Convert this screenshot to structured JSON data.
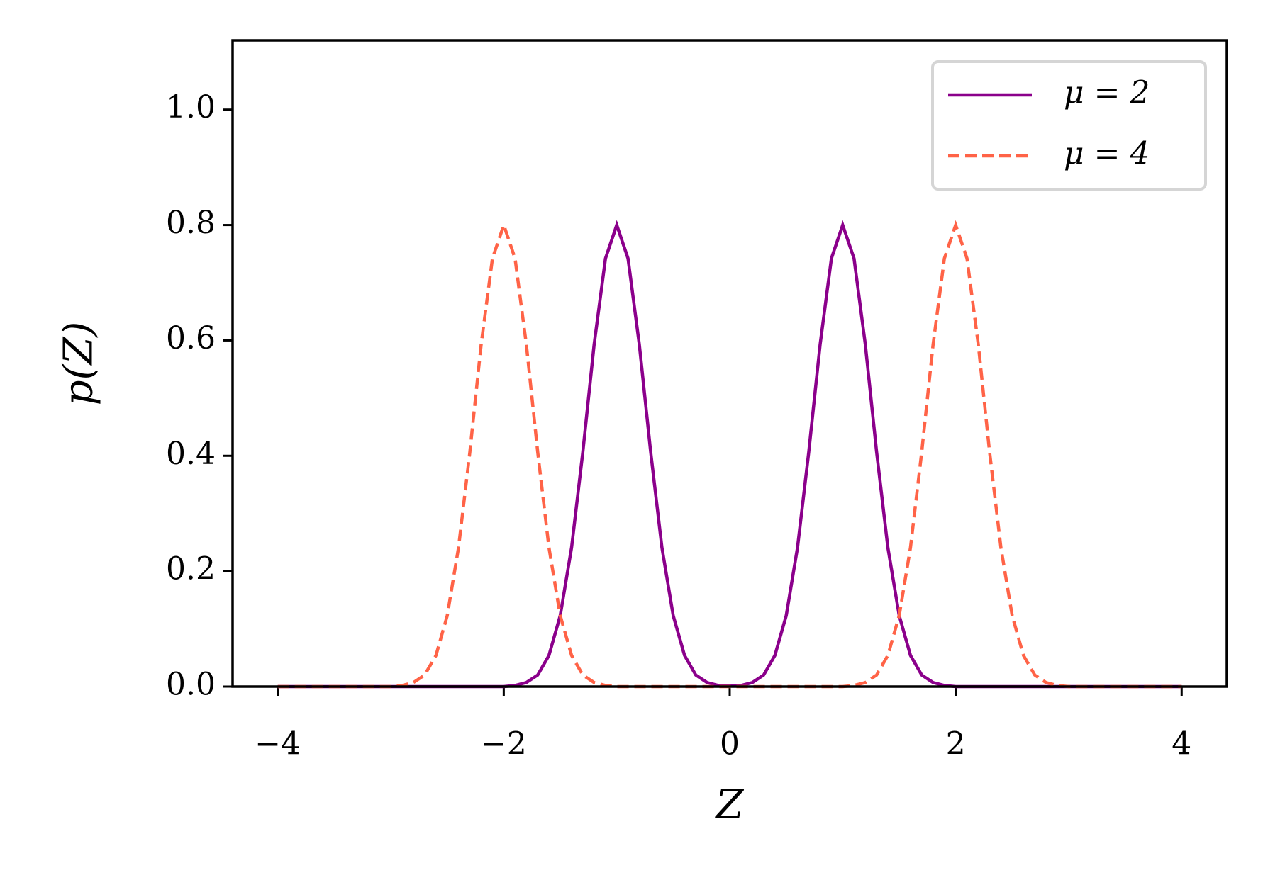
{
  "chart_data": {
    "type": "line",
    "xlabel": "Z",
    "ylabel": "p(Z)",
    "x": [
      -4.0,
      -3.9,
      -3.8,
      -3.7,
      -3.6,
      -3.5,
      -3.4,
      -3.3,
      -3.2,
      -3.1,
      -3.0,
      -2.9,
      -2.8,
      -2.7,
      -2.6,
      -2.5,
      -2.4,
      -2.3,
      -2.2,
      -2.1,
      -2.0,
      -1.9,
      -1.8,
      -1.7,
      -1.6,
      -1.5,
      -1.4,
      -1.3,
      -1.2,
      -1.1,
      -1.0,
      -0.9,
      -0.8,
      -0.7,
      -0.6,
      -0.5,
      -0.4,
      -0.3,
      -0.2,
      -0.1,
      0.0,
      0.1,
      0.2,
      0.3,
      0.4,
      0.5,
      0.6,
      0.7,
      0.8,
      0.9,
      1.0,
      1.1,
      1.2,
      1.3,
      1.4,
      1.5,
      1.6,
      1.7,
      1.8,
      1.9,
      2.0,
      2.1,
      2.2,
      2.3,
      2.4,
      2.5,
      2.6,
      2.7,
      2.8,
      2.9,
      3.0,
      3.1,
      3.2,
      3.3,
      3.4,
      3.5,
      3.6,
      3.7,
      3.8,
      3.9,
      4.0
    ],
    "series": [
      {
        "name": "μ = 2",
        "color": "#8b008b",
        "dash": false,
        "values": [
          0,
          0,
          0,
          0,
          0,
          0,
          0,
          0,
          0,
          0,
          0,
          0,
          0,
          0,
          0,
          0,
          0,
          0,
          0,
          0,
          0,
          0.002,
          0.007,
          0.02,
          0.054,
          0.123,
          0.241,
          0.407,
          0.593,
          0.742,
          0.8,
          0.742,
          0.593,
          0.407,
          0.241,
          0.123,
          0.054,
          0.02,
          0.007,
          0.002,
          0.001,
          0.002,
          0.007,
          0.02,
          0.054,
          0.123,
          0.241,
          0.407,
          0.593,
          0.742,
          0.8,
          0.742,
          0.593,
          0.407,
          0.241,
          0.123,
          0.054,
          0.02,
          0.007,
          0.002,
          0,
          0,
          0,
          0,
          0,
          0,
          0,
          0,
          0,
          0,
          0,
          0,
          0,
          0,
          0,
          0,
          0,
          0,
          0,
          0,
          0
        ]
      },
      {
        "name": "μ = 4",
        "color": "#ff6347",
        "dash": true,
        "values": [
          0,
          0,
          0,
          0,
          0,
          0,
          0,
          0,
          0,
          0,
          0,
          0.002,
          0.007,
          0.02,
          0.054,
          0.123,
          0.241,
          0.407,
          0.593,
          0.742,
          0.8,
          0.742,
          0.593,
          0.407,
          0.241,
          0.123,
          0.054,
          0.02,
          0.007,
          0.002,
          0,
          0,
          0,
          0,
          0,
          0,
          0,
          0,
          0,
          0,
          0,
          0,
          0,
          0,
          0,
          0,
          0,
          0,
          0,
          0,
          0,
          0.002,
          0.007,
          0.02,
          0.054,
          0.123,
          0.241,
          0.407,
          0.593,
          0.742,
          0.8,
          0.742,
          0.593,
          0.407,
          0.241,
          0.123,
          0.054,
          0.02,
          0.007,
          0.002,
          0,
          0,
          0,
          0,
          0,
          0,
          0,
          0,
          0,
          0,
          0
        ]
      }
    ],
    "xlim": [
      -4.4,
      4.4
    ],
    "xticks": [
      {
        "value": -4,
        "label": "−4"
      },
      {
        "value": -2,
        "label": "−2"
      },
      0,
      2,
      4
    ],
    "ylim": [
      0,
      1.12
    ],
    "yticks": [
      {
        "value": 0,
        "label": "0.0"
      },
      0.2,
      0.4,
      0.6,
      0.8,
      {
        "value": 1,
        "label": "1.0"
      }
    ],
    "legend": "upper right"
  }
}
